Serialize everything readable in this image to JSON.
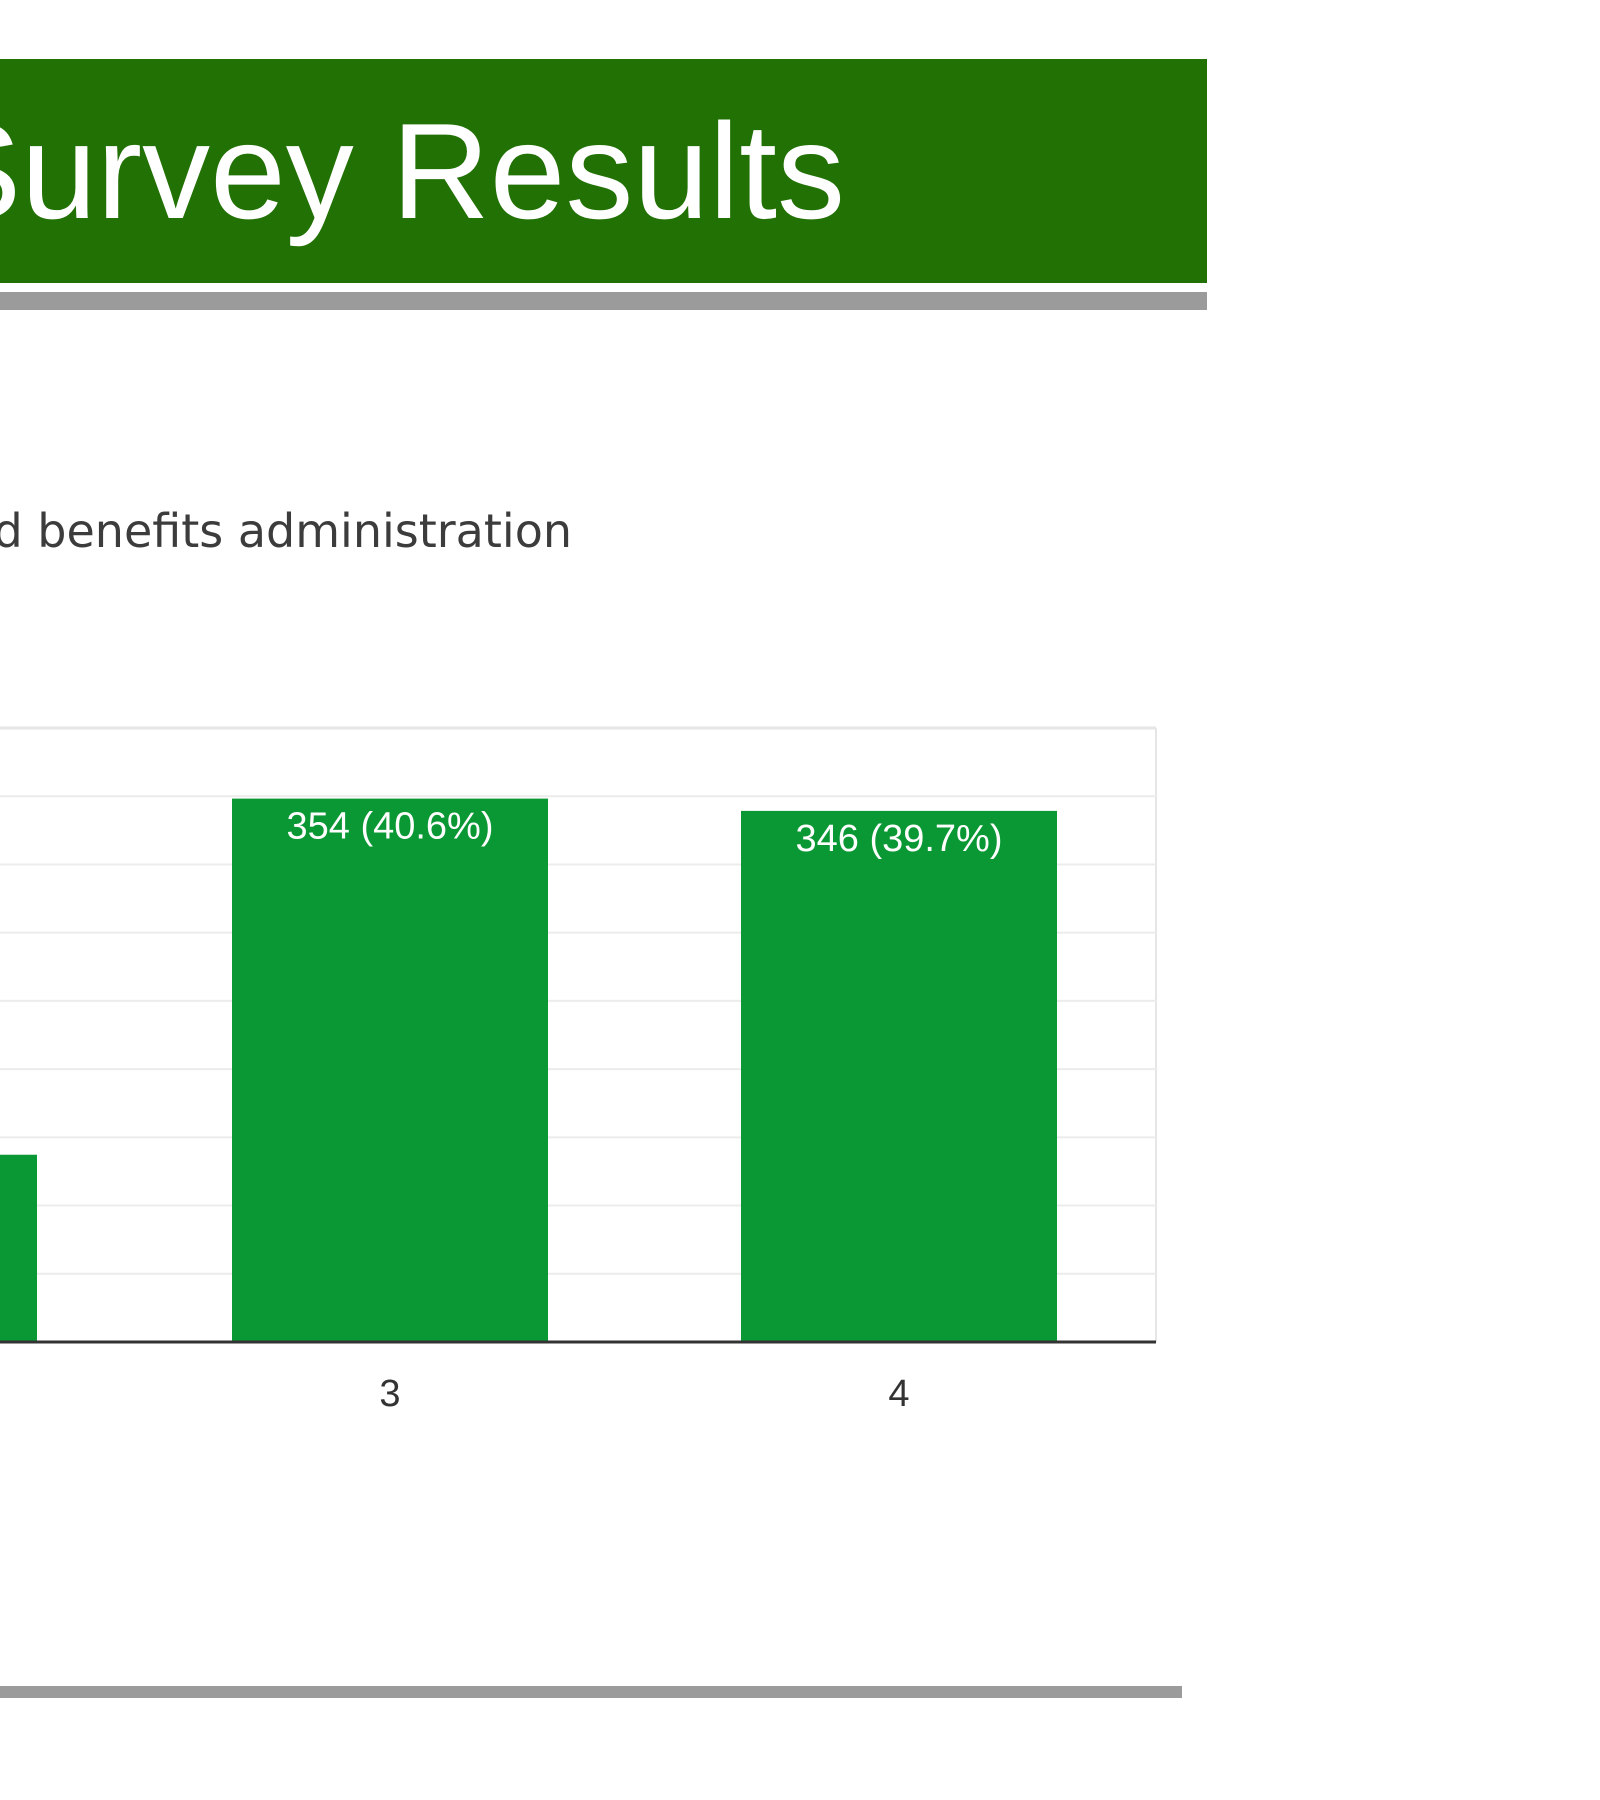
{
  "slide": {
    "title": "Survey Results",
    "question": "nd benefits administration"
  },
  "colors": {
    "banner": "#227105",
    "bar": "#0a9834",
    "rule": "#9b9b9b",
    "label_on_bar": "#ffffff",
    "axis_text": "#333333"
  },
  "chart_data": {
    "type": "bar",
    "categories": [
      "3",
      "4"
    ],
    "values": [
      354,
      346
    ],
    "data_labels": [
      "354 (40.6%)",
      "346 (39.7%)"
    ],
    "partial_bar_value": 122,
    "ylim": [
      0,
      400
    ],
    "grid": true,
    "title": "",
    "xlabel": "",
    "ylabel": ""
  }
}
